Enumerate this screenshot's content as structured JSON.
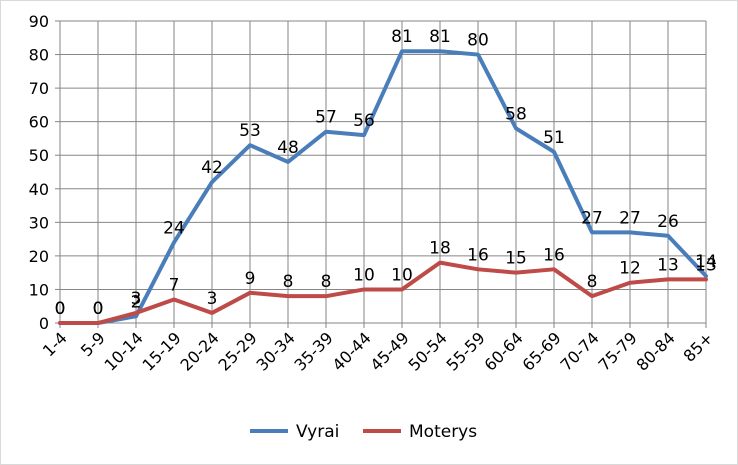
{
  "chart_data": {
    "type": "line",
    "categories": [
      "1-4",
      "5-9",
      "10-14",
      "15-19",
      "20-24",
      "25-29",
      "30-34",
      "35-39",
      "40-44",
      "45-49",
      "50-54",
      "55-59",
      "60-64",
      "65-69",
      "70-74",
      "75-79",
      "80-84",
      "85+"
    ],
    "series": [
      {
        "name": "Vyrai",
        "color": "#4a7ebb",
        "values": [
          0,
          0,
          2,
          24,
          42,
          53,
          48,
          57,
          56,
          81,
          81,
          80,
          58,
          51,
          27,
          27,
          26,
          14
        ]
      },
      {
        "name": "Moterys",
        "color": "#be4b48",
        "values": [
          0,
          0,
          3,
          7,
          3,
          9,
          8,
          8,
          10,
          10,
          18,
          16,
          15,
          16,
          8,
          12,
          13,
          13
        ]
      }
    ],
    "y_ticks": [
      "0",
      "10",
      "20",
      "30",
      "40",
      "50",
      "60",
      "70",
      "80",
      "90"
    ],
    "ylim": [
      0,
      90
    ],
    "grid": true,
    "legend_position": "bottom"
  }
}
